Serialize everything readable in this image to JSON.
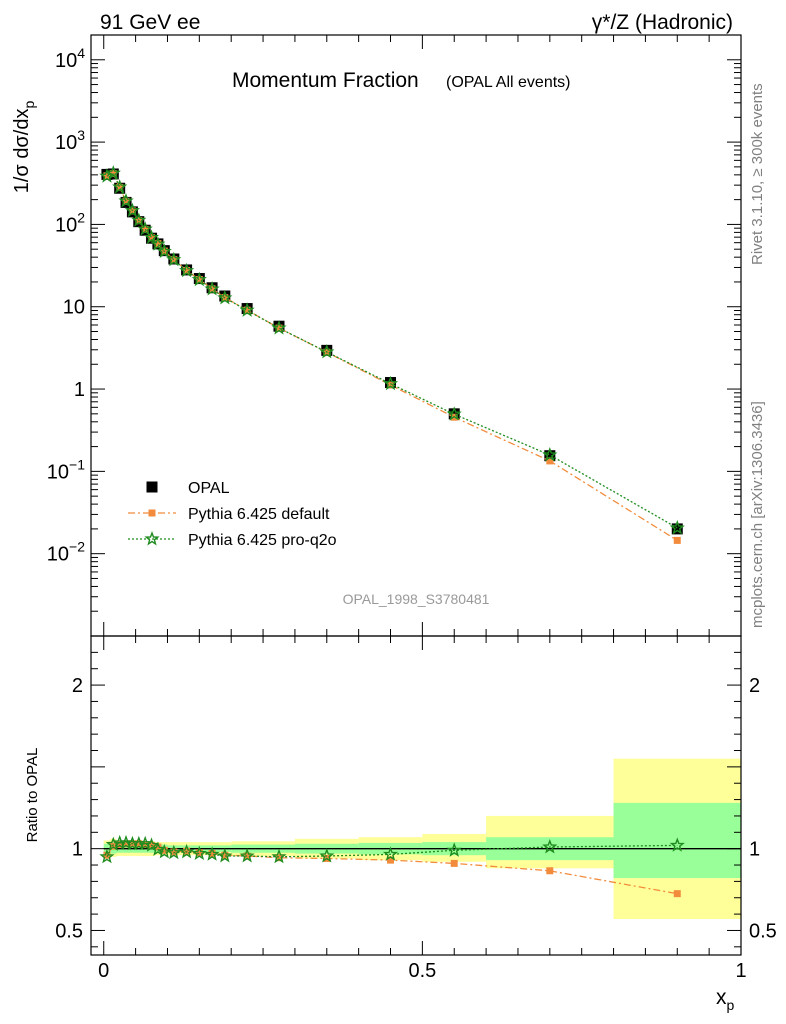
{
  "header": {
    "left": "91 GeV ee",
    "right": "γ*/Z (Hadronic)"
  },
  "side_label_top": "Rivet 3.1.10, ≥ 300k events",
  "side_label_bottom": "mcplots.cern.ch [arXiv:1306.3436]",
  "chart_data": [
    {
      "type": "scatter",
      "title": "Momentum Fraction",
      "subtitle": "(OPAL All events)",
      "ylabel": "1/σ dσ/dx",
      "ylabel_sub": "p",
      "yscale": "log",
      "ylim": [
        0.001,
        20000
      ],
      "xlim": [
        -0.02,
        1.0
      ],
      "y_ticks": [
        {
          "v": 10000,
          "base": "10",
          "exp": "4"
        },
        {
          "v": 1000,
          "base": "10",
          "exp": "3"
        },
        {
          "v": 100,
          "base": "10",
          "exp": "2"
        },
        {
          "v": 10,
          "base": "10",
          "exp": ""
        },
        {
          "v": 1,
          "base": "1",
          "exp": ""
        },
        {
          "v": 0.1,
          "base": "10",
          "exp": "−1"
        },
        {
          "v": 0.01,
          "base": "10",
          "exp": "−2"
        }
      ],
      "watermark": "OPAL_1998_S3780481",
      "legend_position": "bottom-left",
      "x": [
        0.005,
        0.015,
        0.025,
        0.035,
        0.045,
        0.055,
        0.065,
        0.075,
        0.085,
        0.095,
        0.11,
        0.13,
        0.15,
        0.17,
        0.19,
        0.225,
        0.275,
        0.35,
        0.45,
        0.55,
        0.7,
        0.9
      ],
      "series": [
        {
          "name": "OPAL",
          "color": "#000000",
          "marker": "square",
          "values": [
            405,
            410,
            275,
            185,
            142,
            108,
            85,
            68,
            58,
            48,
            38,
            28,
            22,
            17,
            13.5,
            9.5,
            5.8,
            2.95,
            1.2,
            0.5,
            0.155,
            0.02
          ]
        },
        {
          "name": "Pythia 6.425 default",
          "color": "#f28c3c",
          "marker": "square-small",
          "line": "dashdot",
          "values": [
            390,
            415,
            282,
            191,
            146,
            111,
            87,
            69,
            58.5,
            47.5,
            37.3,
            27.6,
            21.4,
            16.5,
            12.9,
            9.1,
            5.5,
            2.8,
            1.12,
            0.455,
            0.134,
            0.0145
          ]
        },
        {
          "name": "Pythia 6.425 pro-q2o",
          "color": "#1f8c1f",
          "marker": "star",
          "line": "dotted",
          "values": [
            385,
            420,
            284,
            192,
            147,
            112,
            87.5,
            69.5,
            57.5,
            47,
            37.2,
            27.4,
            21.3,
            16.4,
            12.8,
            9.05,
            5.5,
            2.82,
            1.16,
            0.495,
            0.158,
            0.0205
          ]
        }
      ]
    },
    {
      "type": "scatter",
      "ylabel": "Ratio to OPAL",
      "xlabel": "x",
      "xlabel_sub": "p",
      "ylim": [
        0.35,
        2.3
      ],
      "xlim": [
        -0.02,
        1.0
      ],
      "y_ticks": [
        0.5,
        1,
        2
      ],
      "y_tick_labels": [
        "0.5",
        "1",
        "2"
      ],
      "x_ticks": [
        0,
        0.5,
        1
      ],
      "x_tick_labels": [
        "0",
        "0.5",
        "1"
      ],
      "bands": {
        "green": [
          [
            0.0,
            0.01,
            0.97,
            1.03
          ],
          [
            0.01,
            0.02,
            0.97,
            1.04
          ],
          [
            0.02,
            0.08,
            0.975,
            1.025
          ],
          [
            0.08,
            0.1,
            0.975,
            1.025
          ],
          [
            0.1,
            0.2,
            0.98,
            1.02
          ],
          [
            0.2,
            0.3,
            0.975,
            1.025
          ],
          [
            0.3,
            0.4,
            0.97,
            1.03
          ],
          [
            0.4,
            0.5,
            0.965,
            1.035
          ],
          [
            0.5,
            0.6,
            0.96,
            1.04
          ],
          [
            0.6,
            0.8,
            0.93,
            1.07
          ],
          [
            0.8,
            1.0,
            0.82,
            1.28
          ]
        ],
        "yellow": [
          [
            0.0,
            0.01,
            0.95,
            1.05
          ],
          [
            0.01,
            0.02,
            0.95,
            1.06
          ],
          [
            0.02,
            0.08,
            0.955,
            1.045
          ],
          [
            0.08,
            0.1,
            0.96,
            1.04
          ],
          [
            0.1,
            0.2,
            0.96,
            1.04
          ],
          [
            0.2,
            0.3,
            0.955,
            1.045
          ],
          [
            0.3,
            0.4,
            0.94,
            1.06
          ],
          [
            0.4,
            0.5,
            0.93,
            1.07
          ],
          [
            0.5,
            0.6,
            0.92,
            1.09
          ],
          [
            0.6,
            0.8,
            0.88,
            1.2
          ],
          [
            0.8,
            1.0,
            0.57,
            1.55
          ]
        ]
      },
      "series": [
        {
          "name": "Pythia 6.425 default",
          "color": "#f28c3c",
          "values": [
            0.96,
            1.015,
            1.025,
            1.03,
            1.03,
            1.03,
            1.025,
            1.02,
            1.01,
            0.99,
            0.98,
            0.985,
            0.975,
            0.97,
            0.96,
            0.955,
            0.945,
            0.94,
            0.93,
            0.91,
            0.865,
            0.725
          ]
        },
        {
          "name": "Pythia 6.425 pro-q2o",
          "color": "#1f8c1f",
          "values": [
            0.95,
            1.025,
            1.035,
            1.035,
            1.03,
            1.03,
            1.03,
            1.02,
            0.995,
            0.98,
            0.975,
            0.98,
            0.97,
            0.965,
            0.955,
            0.955,
            0.95,
            0.955,
            0.965,
            0.99,
            1.01,
            1.02
          ]
        }
      ]
    }
  ]
}
